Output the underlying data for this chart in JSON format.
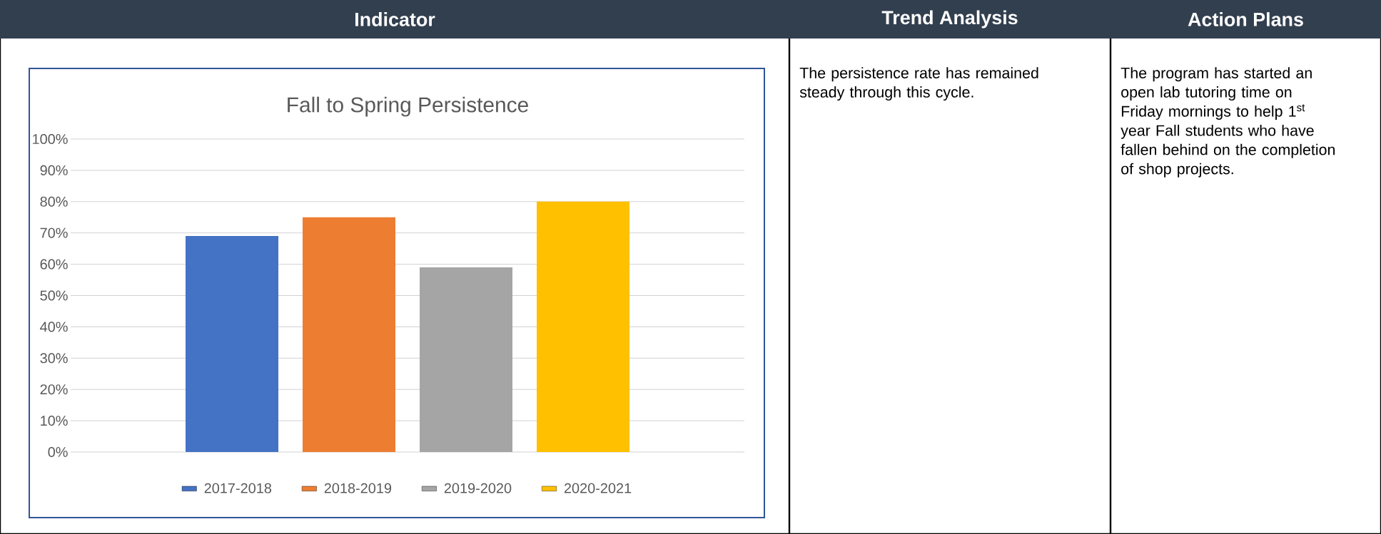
{
  "chart_data": [
    {
      "type": "bar",
      "title": "Fall to Spring Persistence",
      "annotations": [
        "Indicator"
      ],
      "categories": [
        null
      ],
      "series": [
        {
          "name": "2017-2018",
          "color": "#4472c4",
          "values": [
            69
          ]
        },
        {
          "name": "2018-2019",
          "color": "#ed7d31",
          "values": [
            75
          ]
        },
        {
          "name": "2019-2020",
          "color": "#a5a5a5",
          "values": [
            59
          ]
        },
        {
          "name": "2020-2021",
          "color": "#ffc000",
          "values": [
            80
          ]
        }
      ],
      "ylim": [
        0,
        100
      ],
      "yticks": [
        {
          "value": 0,
          "label": "0%"
        },
        {
          "value": 10,
          "label": "10%"
        },
        {
          "value": 20,
          "label": "20%"
        },
        {
          "value": 30,
          "label": "30%"
        },
        {
          "value": 40,
          "label": "40%"
        },
        {
          "value": 50,
          "label": "50%"
        },
        {
          "value": 60,
          "label": "60%"
        },
        {
          "value": 70,
          "label": "70%"
        },
        {
          "value": 80,
          "label": "80%"
        },
        {
          "value": 90,
          "label": "90%"
        },
        {
          "value": 100,
          "label": "100%"
        }
      ],
      "grid": "y",
      "legend": "bottom"
    },
    {
      "type": "other",
      "title": "Trend Analysis",
      "annotations": [
        "The persistence rate has remained steady through this cycle."
      ]
    },
    {
      "type": "other",
      "title": "Action Plans",
      "annotations": [
        "The program has started an open lab tutoring time on Friday mornings to help 1$^{st}$ year Fall students who have fallen behind on the completion of shop projects."
      ]
    }
  ]
}
